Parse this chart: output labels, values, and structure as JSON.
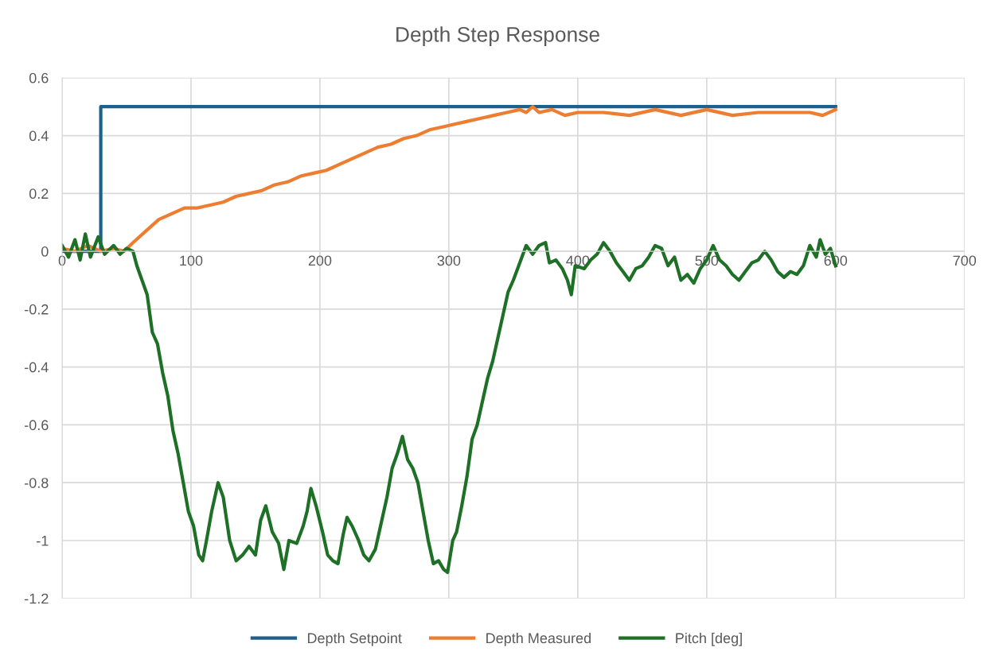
{
  "chart_data": {
    "type": "line",
    "title": "Depth Step Response",
    "xlim": [
      0,
      700
    ],
    "xticks": [
      0,
      100,
      200,
      300,
      400,
      500,
      600,
      700
    ],
    "ylim": [
      -1.2,
      0.6
    ],
    "yticks": [
      0.6,
      0.4,
      0.2,
      0,
      -0.2,
      -0.4,
      -0.6,
      -0.8,
      -1,
      -1.2
    ],
    "grid": true,
    "legend": "bottom",
    "marker": "none",
    "line_style": "solid",
    "series": [
      {
        "name": "Depth Setpoint",
        "color": "#1f5f8b",
        "x": [
          0,
          30,
          30,
          600
        ],
        "values": [
          0,
          0,
          0.5,
          0.5
        ]
      },
      {
        "name": "Depth Measured",
        "color": "#ed7d31",
        "x": [
          0,
          10,
          20,
          30,
          40,
          48,
          55,
          65,
          75,
          85,
          95,
          105,
          115,
          125,
          135,
          145,
          155,
          165,
          175,
          185,
          195,
          205,
          215,
          225,
          235,
          245,
          255,
          265,
          275,
          285,
          295,
          305,
          315,
          325,
          335,
          345,
          355,
          360,
          365,
          370,
          380,
          390,
          400,
          420,
          440,
          460,
          480,
          500,
          520,
          540,
          560,
          580,
          590,
          600
        ],
        "values": [
          0.01,
          0.0,
          0.02,
          0.0,
          0.01,
          0.0,
          0.03,
          0.07,
          0.11,
          0.13,
          0.15,
          0.15,
          0.16,
          0.17,
          0.19,
          0.2,
          0.21,
          0.23,
          0.24,
          0.26,
          0.27,
          0.28,
          0.3,
          0.32,
          0.34,
          0.36,
          0.37,
          0.39,
          0.4,
          0.42,
          0.43,
          0.44,
          0.45,
          0.46,
          0.47,
          0.48,
          0.49,
          0.48,
          0.5,
          0.48,
          0.49,
          0.47,
          0.48,
          0.48,
          0.47,
          0.49,
          0.47,
          0.49,
          0.47,
          0.48,
          0.48,
          0.48,
          0.47,
          0.49
        ]
      },
      {
        "name": "Pitch [deg]",
        "color": "#1e7027",
        "x": [
          0,
          5,
          10,
          14,
          18,
          22,
          28,
          33,
          40,
          45,
          50,
          55,
          58,
          62,
          66,
          70,
          74,
          78,
          82,
          86,
          90,
          94,
          98,
          102,
          106,
          109,
          112,
          116,
          121,
          125,
          130,
          135,
          140,
          145,
          150,
          154,
          158,
          163,
          168,
          172,
          176,
          182,
          187,
          190,
          193,
          197,
          202,
          206,
          210,
          214,
          218,
          221,
          225,
          230,
          234,
          238,
          243,
          247,
          252,
          256,
          260,
          264,
          268,
          272,
          276,
          280,
          284,
          288,
          292,
          296,
          299,
          303,
          306,
          310,
          314,
          318,
          322,
          326,
          330,
          334,
          338,
          342,
          346,
          350,
          355,
          360,
          365,
          370,
          375,
          378,
          383,
          388,
          392,
          395,
          398,
          405,
          410,
          415,
          420,
          425,
          430,
          435,
          440,
          445,
          450,
          455,
          460,
          465,
          470,
          475,
          480,
          485,
          490,
          495,
          500,
          505,
          510,
          515,
          520,
          525,
          530,
          535,
          540,
          545,
          550,
          555,
          560,
          565,
          570,
          575,
          580,
          585,
          588,
          592,
          596,
          600
        ],
        "values": [
          0.02,
          -0.02,
          0.04,
          -0.03,
          0.06,
          -0.02,
          0.05,
          -0.01,
          0.02,
          -0.01,
          0.01,
          0.0,
          -0.05,
          -0.1,
          -0.15,
          -0.28,
          -0.32,
          -0.42,
          -0.5,
          -0.62,
          -0.7,
          -0.8,
          -0.9,
          -0.95,
          -1.05,
          -1.07,
          -1.0,
          -0.9,
          -0.8,
          -0.85,
          -1.0,
          -1.07,
          -1.05,
          -1.02,
          -1.05,
          -0.93,
          -0.88,
          -0.97,
          -1.01,
          -1.1,
          -1.0,
          -1.01,
          -0.95,
          -0.9,
          -0.82,
          -0.88,
          -0.97,
          -1.05,
          -1.07,
          -1.08,
          -0.98,
          -0.92,
          -0.95,
          -1.0,
          -1.05,
          -1.07,
          -1.03,
          -0.95,
          -0.85,
          -0.75,
          -0.7,
          -0.64,
          -0.72,
          -0.75,
          -0.8,
          -0.9,
          -1.0,
          -1.08,
          -1.07,
          -1.1,
          -1.11,
          -1.0,
          -0.97,
          -0.88,
          -0.78,
          -0.65,
          -0.6,
          -0.52,
          -0.44,
          -0.38,
          -0.3,
          -0.22,
          -0.14,
          -0.1,
          -0.04,
          0.02,
          -0.01,
          0.02,
          0.03,
          -0.04,
          -0.03,
          -0.06,
          -0.1,
          -0.15,
          -0.05,
          -0.06,
          -0.03,
          -0.01,
          0.03,
          0.0,
          -0.04,
          -0.07,
          -0.1,
          -0.06,
          -0.05,
          -0.02,
          0.02,
          0.01,
          -0.05,
          -0.02,
          -0.1,
          -0.08,
          -0.11,
          -0.06,
          -0.03,
          0.02,
          -0.03,
          -0.05,
          -0.08,
          -0.1,
          -0.07,
          -0.04,
          -0.03,
          0.0,
          -0.03,
          -0.07,
          -0.09,
          -0.07,
          -0.08,
          -0.05,
          0.02,
          -0.02,
          0.04,
          -0.01,
          0.01,
          -0.05
        ]
      }
    ]
  }
}
